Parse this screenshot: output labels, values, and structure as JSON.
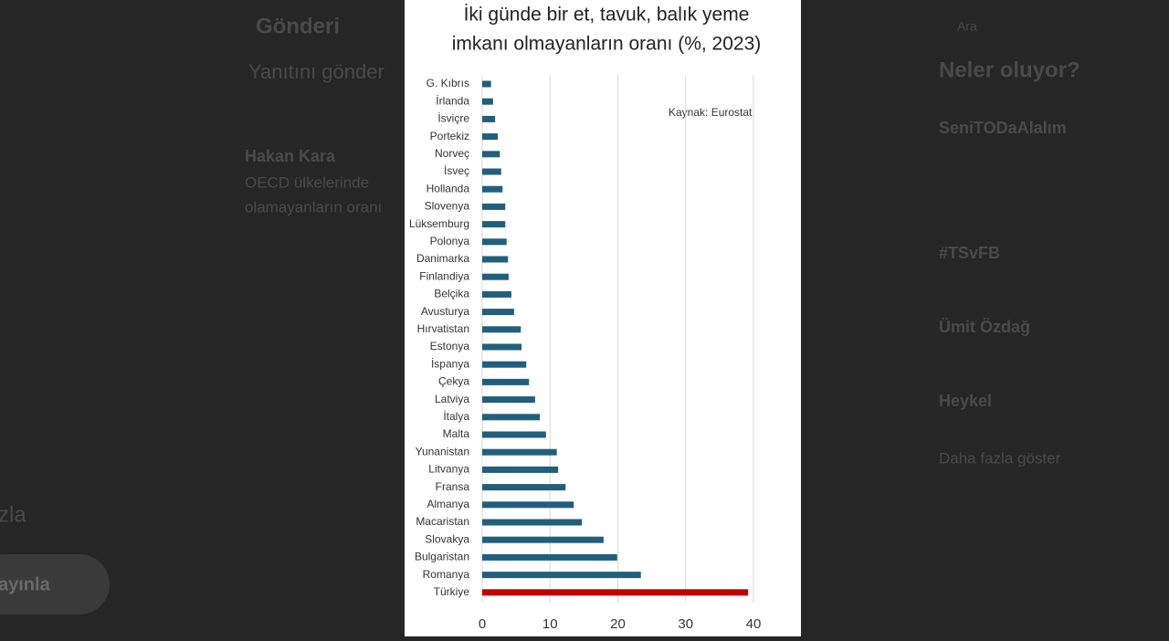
{
  "background": {
    "items": [
      "Gönderi",
      "Yanıtını gönder",
      "Hakan Kara",
      "OECD ülkelerinde",
      "olamayanların oranı",
      "Neler oluyor?",
      "SeniTODaAlalım",
      "#TSvFB",
      "Ümit Özdağ",
      "Heykel",
      "Daha fazla göster",
      "ayınla",
      "zla",
      "Ara"
    ]
  },
  "chart_data": {
    "type": "bar",
    "orientation": "horizontal",
    "title": [
      "İki günde bir et, tavuk, balık yeme",
      "imkanı olmayanların oranı (%, 2023)"
    ],
    "annotation": "Kaynak: Eurostat.",
    "categories": [
      "G. Kıbrıs",
      "İrlanda",
      "İsviçre",
      "Portekiz",
      "Norveç",
      "İsveç",
      "Hollanda",
      "Slovenya",
      "Lüksemburg",
      "Polonya",
      "Danimarka",
      "Finlandiya",
      "Belçika",
      "Avusturya",
      "Hırvatistan",
      "Estonya",
      "İspanya",
      "Çekya",
      "Latviya",
      "İtalya",
      "Malta",
      "Yunanistan",
      "Litvanya",
      "Fransa",
      "Almanya",
      "Macaristan",
      "Slovakya",
      "Bulgaristan",
      "Romanya",
      "Türkiye"
    ],
    "values": [
      1.3,
      1.6,
      1.9,
      2.3,
      2.6,
      2.8,
      3.0,
      3.4,
      3.4,
      3.6,
      3.8,
      3.9,
      4.3,
      4.7,
      5.7,
      5.8,
      6.5,
      6.9,
      7.8,
      8.5,
      9.4,
      11.0,
      11.2,
      12.3,
      13.5,
      14.7,
      17.9,
      19.9,
      23.4,
      39.2
    ],
    "colors": [
      "#215f7c",
      "#215f7c",
      "#215f7c",
      "#215f7c",
      "#215f7c",
      "#215f7c",
      "#215f7c",
      "#215f7c",
      "#215f7c",
      "#215f7c",
      "#215f7c",
      "#215f7c",
      "#215f7c",
      "#215f7c",
      "#215f7c",
      "#215f7c",
      "#215f7c",
      "#215f7c",
      "#215f7c",
      "#215f7c",
      "#215f7c",
      "#215f7c",
      "#215f7c",
      "#215f7c",
      "#215f7c",
      "#215f7c",
      "#215f7c",
      "#215f7c",
      "#215f7c",
      "#c00000"
    ],
    "xlim": [
      0,
      40
    ],
    "xticks": [
      0,
      10,
      20,
      30,
      40
    ],
    "grid": true
  }
}
